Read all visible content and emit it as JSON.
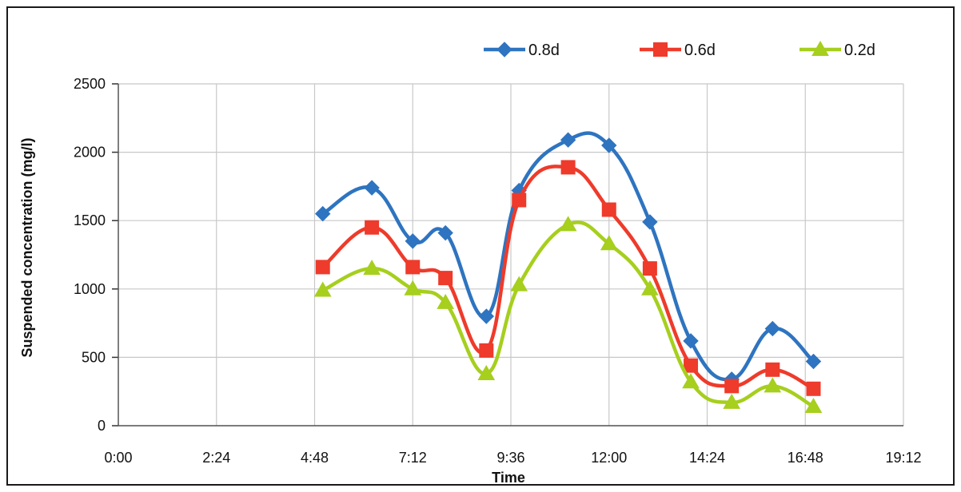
{
  "chart_data": {
    "type": "line",
    "title": "",
    "xlabel": "Time",
    "ylabel": "Suspended concentration (mg/l)",
    "x_unit": "time of day (hours)",
    "xlim": [
      0,
      19.2
    ],
    "ylim": [
      0,
      2500
    ],
    "x_ticks": [
      "0:00",
      "2:24",
      "4:48",
      "7:12",
      "9:36",
      "12:00",
      "14:24",
      "16:48",
      "19:12"
    ],
    "y_ticks": [
      "0",
      "500",
      "1000",
      "1500",
      "2000",
      "2500"
    ],
    "y_tick_values": [
      0,
      500,
      1000,
      1500,
      2000,
      2500
    ],
    "grid": true,
    "legend_position": "top-right",
    "x": [
      5.0,
      6.2,
      7.2,
      8.0,
      9.0,
      9.8,
      11.0,
      12.0,
      13.0,
      14.0,
      15.0,
      16.0,
      17.0
    ],
    "series": [
      {
        "name": "0.8d",
        "color": "#2e74c0",
        "marker": "diamond",
        "values": [
          1550,
          1740,
          1350,
          1410,
          800,
          1720,
          2090,
          2050,
          1490,
          620,
          340,
          710,
          470
        ]
      },
      {
        "name": "0.6d",
        "color": "#ee3b2b",
        "marker": "square",
        "values": [
          1160,
          1450,
          1160,
          1080,
          550,
          1650,
          1890,
          1580,
          1150,
          440,
          290,
          410,
          270
        ]
      },
      {
        "name": "0.2d",
        "color": "#a6cf1e",
        "marker": "triangle",
        "values": [
          990,
          1150,
          1000,
          900,
          380,
          1030,
          1470,
          1330,
          1000,
          320,
          170,
          290,
          140
        ]
      }
    ]
  }
}
